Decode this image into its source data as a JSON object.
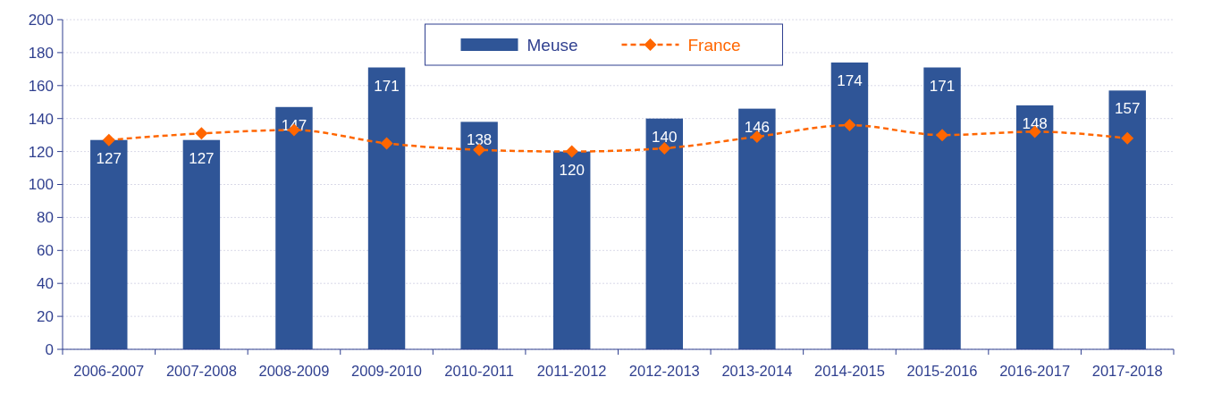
{
  "chart_data": {
    "type": "bar",
    "categories": [
      "2006-2007",
      "2007-2008",
      "2008-2009",
      "2009-2010",
      "2010-2011",
      "2011-2012",
      "2012-2013",
      "2013-2014",
      "2014-2015",
      "2015-2016",
      "2016-2017",
      "2017-2018"
    ],
    "series": [
      {
        "name": "Meuse",
        "color": "#2f5597",
        "values": [
          127,
          127,
          147,
          171,
          138,
          120,
          140,
          146,
          174,
          171,
          148,
          157
        ],
        "value_labels": [
          "127",
          "127",
          "147",
          "171",
          "138",
          "120",
          "140",
          "146",
          "174",
          "171",
          "148",
          "157"
        ]
      },
      {
        "name": "France",
        "type": "line",
        "color": "#ff6600",
        "marker": "diamond",
        "line_style": "dashed",
        "values": [
          127,
          131,
          133,
          125,
          121,
          120,
          122,
          129,
          136,
          130,
          132,
          128
        ]
      }
    ],
    "ylim": [
      0,
      200
    ],
    "yticks": [
      0,
      20,
      40,
      60,
      80,
      100,
      120,
      140,
      160,
      180,
      200
    ],
    "grid": "y",
    "legend": "top"
  }
}
